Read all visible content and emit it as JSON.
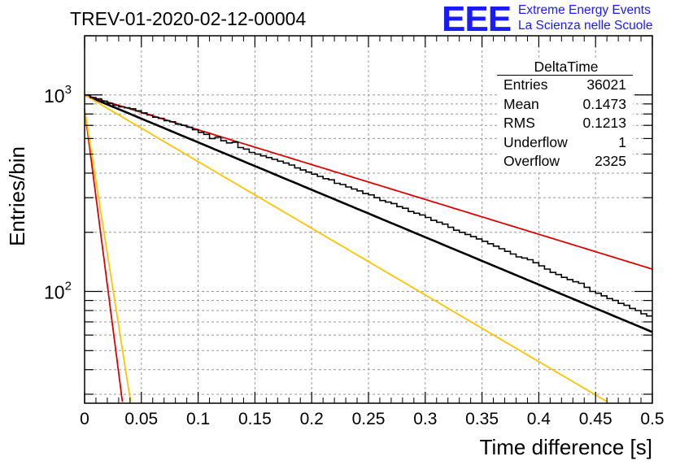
{
  "header": {
    "title": "TREV-01-2020-02-12-00004"
  },
  "logo": {
    "mark": "EEE",
    "line1": "Extreme Energy Events",
    "line2": "La Scienza nelle Scuole"
  },
  "stats": {
    "name": "DeltaTime",
    "rows": [
      {
        "label": "Entries",
        "value": "36021"
      },
      {
        "label": "Mean",
        "value": "0.1473"
      },
      {
        "label": "RMS",
        "value": "0.1213"
      },
      {
        "label": "Underflow",
        "value": "1"
      },
      {
        "label": "Overflow",
        "value": "2325"
      }
    ]
  },
  "chart_data": {
    "type": "line",
    "title": "TREV-01-2020-02-12-00004",
    "xlabel": "Time difference [s]",
    "ylabel": "Entries/bin",
    "xlim": [
      0,
      0.5
    ],
    "ylim": [
      27,
      2000
    ],
    "yscale": "log",
    "grid": true,
    "x_ticks": [
      0,
      0.05,
      0.1,
      0.15,
      0.2,
      0.25,
      0.3,
      0.35,
      0.4,
      0.45,
      0.5
    ],
    "x_tick_labels": [
      "0",
      "0.05",
      "0.1",
      "0.15",
      "0.2",
      "0.25",
      "0.3",
      "0.35",
      "0.4",
      "0.45",
      "0.5"
    ],
    "y_tick_labels": [
      "10",
      "10"
    ],
    "y_tick_exponents": [
      "2",
      "3"
    ],
    "histogram": {
      "bin_width": 0.005,
      "values": [
        1000,
        970,
        955,
        930,
        905,
        885,
        870,
        860,
        850,
        830,
        810,
        790,
        770,
        760,
        740,
        730,
        710,
        700,
        685,
        665,
        645,
        630,
        600,
        610,
        585,
        570,
        575,
        540,
        530,
        510,
        500,
        490,
        480,
        470,
        460,
        450,
        440,
        425,
        415,
        405,
        395,
        385,
        375,
        370,
        355,
        350,
        340,
        332,
        325,
        315,
        310,
        300,
        290,
        285,
        280,
        270,
        265,
        255,
        250,
        245,
        238,
        230,
        225,
        220,
        212,
        205,
        200,
        195,
        190,
        185,
        180,
        175,
        170,
        165,
        160,
        155,
        150,
        148,
        145,
        140,
        135,
        130,
        125,
        122,
        118,
        115,
        112,
        110,
        105,
        100,
        98,
        95,
        92,
        90,
        87,
        85,
        82,
        80,
        77,
        75
      ]
    },
    "series": [
      {
        "name": "",
        "color": "#000000",
        "type": "exponential",
        "A": 1000,
        "tau": 0.18,
        "x_range": [
          0,
          0.5
        ]
      },
      {
        "name": "",
        "color": "#dd0000",
        "type": "exponential",
        "A": 1000,
        "tau": 0.245,
        "x_range": [
          0,
          0.5
        ]
      },
      {
        "name": "",
        "color": "#ffc400",
        "type": "exponential",
        "A": 1000,
        "tau": 0.128,
        "x_range": [
          0,
          0.5
        ]
      },
      {
        "name": "",
        "color": "#dd0000",
        "type": "exponential",
        "A": 850,
        "tau": 0.0097,
        "x_range": [
          0,
          0.06
        ]
      },
      {
        "name": "",
        "color": "#ffc400",
        "type": "exponential",
        "A": 850,
        "tau": 0.0118,
        "x_range": [
          0,
          0.06
        ]
      }
    ]
  }
}
